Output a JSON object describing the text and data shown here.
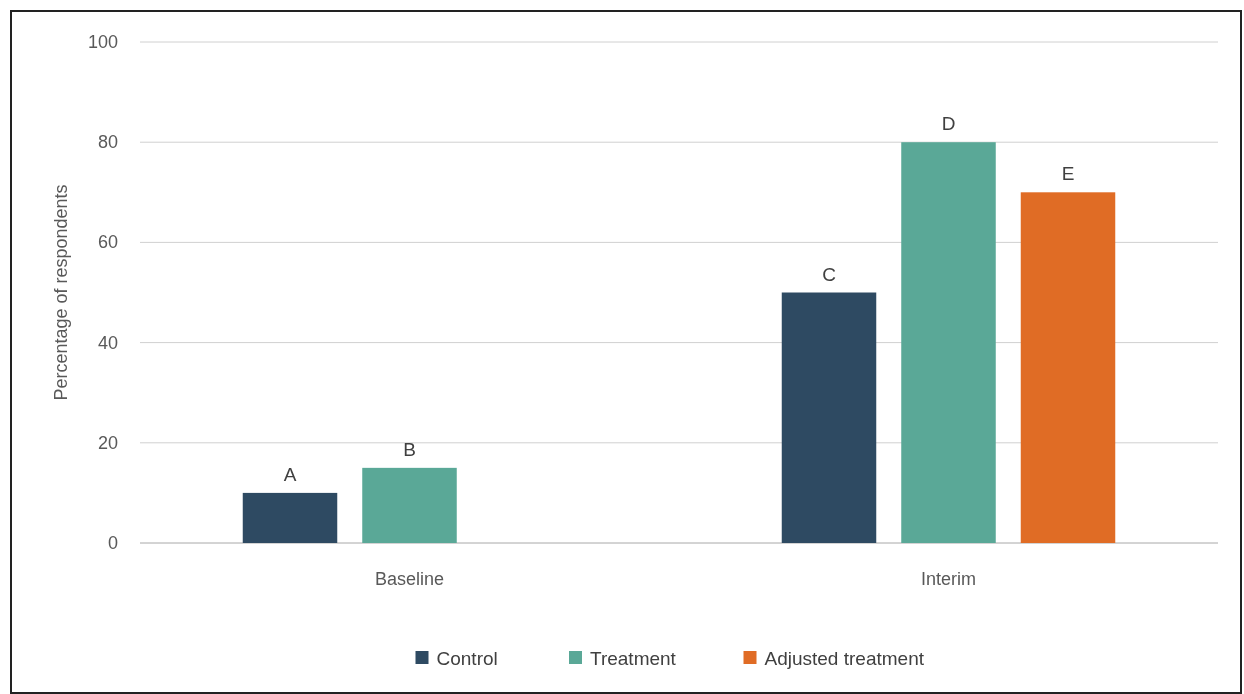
{
  "chart_data": {
    "type": "bar",
    "ylabel": "Percentage of respondents",
    "categories": [
      "Baseline",
      "Interim"
    ],
    "series": [
      {
        "name": "Control",
        "color": "#2e4a62",
        "values": [
          10,
          50
        ],
        "value_labels": [
          "A",
          "C"
        ]
      },
      {
        "name": "Treatment",
        "color": "#5aa897",
        "values": [
          15,
          80
        ],
        "value_labels": [
          "B",
          "D"
        ]
      },
      {
        "name": "Adjusted treatment",
        "color": "#e06c25",
        "values": [
          null,
          70
        ],
        "value_labels": [
          null,
          "E"
        ]
      }
    ],
    "ylim": [
      0,
      100
    ],
    "yticks": [
      0,
      20,
      40,
      60,
      80,
      100
    ],
    "grid": "y",
    "legend": "bottom"
  }
}
